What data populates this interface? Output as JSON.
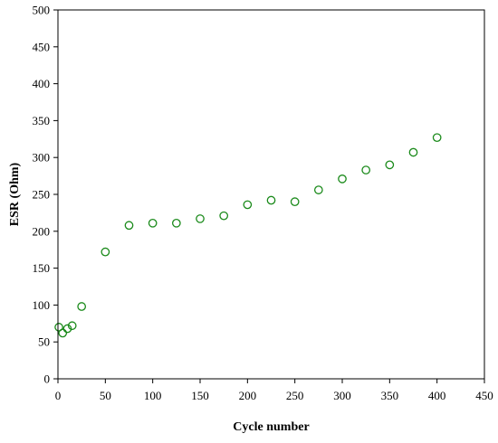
{
  "chart_data": {
    "type": "scatter",
    "title": "",
    "xlabel": "Cycle number",
    "ylabel": "ESR (Ohm)",
    "xlim": [
      0,
      450
    ],
    "ylim": [
      0,
      500
    ],
    "xticks": [
      0,
      50,
      100,
      150,
      200,
      250,
      300,
      350,
      400,
      450
    ],
    "yticks": [
      0,
      50,
      100,
      150,
      200,
      250,
      300,
      350,
      400,
      450,
      500
    ],
    "grid": false,
    "marker": "open-circle",
    "marker_color": "#1a8a1a",
    "series": [
      {
        "x": [
          1,
          5,
          10,
          15,
          25,
          50,
          75,
          100,
          125,
          150,
          175,
          200,
          225,
          250,
          275,
          300,
          325,
          350,
          375,
          400
        ],
        "y": [
          70,
          62,
          68,
          72,
          98,
          172,
          208,
          211,
          211,
          217,
          221,
          236,
          242,
          240,
          256,
          271,
          283,
          290,
          307,
          327
        ]
      }
    ]
  }
}
